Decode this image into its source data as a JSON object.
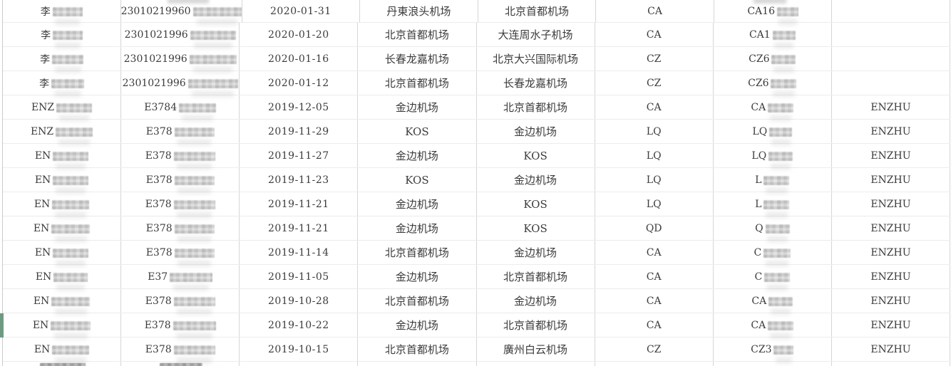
{
  "colors": {
    "row_highlight_green": "#6f9a82",
    "grid_vertical_line": "#d6d6d6",
    "grid_horizontal_line": "#ececec",
    "text": "#3b3b3b"
  },
  "table": {
    "highlighted_row": 14,
    "rows": [
      {
        "name_prefix": "李",
        "name_redacted": true,
        "id_prefix": "23010219960",
        "id_redacted": true,
        "date": "2020-01-31",
        "departure": "丹東浪头机场",
        "arrival": "北京首都机场",
        "carrier": "CA",
        "flight_prefix": "CA16",
        "flight_redacted": true,
        "passenger": ""
      },
      {
        "name_prefix": "李",
        "name_redacted": true,
        "id_prefix": "2301021996",
        "id_redacted": true,
        "date": "2020-01-20",
        "departure": "北京首都机场",
        "arrival": "大连周水子机场",
        "carrier": "CA",
        "flight_prefix": "CA1",
        "flight_redacted": true,
        "passenger": ""
      },
      {
        "name_prefix": "李",
        "name_redacted": true,
        "id_prefix": "2301021996",
        "id_redacted": true,
        "date": "2020-01-16",
        "departure": "长春龙嘉机场",
        "arrival": "北京大兴国际机场",
        "carrier": "CZ",
        "flight_prefix": "CZ6",
        "flight_redacted": true,
        "passenger": ""
      },
      {
        "name_prefix": "李",
        "name_redacted": true,
        "id_prefix": "2301021996",
        "id_redacted": true,
        "date": "2020-01-12",
        "departure": "北京首都机场",
        "arrival": "长春龙嘉机场",
        "carrier": "CZ",
        "flight_prefix": "CZ6",
        "flight_redacted": true,
        "passenger": ""
      },
      {
        "name_prefix": "ENZ",
        "name_redacted": true,
        "id_prefix": "E3784",
        "id_redacted": true,
        "date": "2019-12-05",
        "departure": "金边机场",
        "arrival": "北京首都机场",
        "carrier": "CA",
        "flight_prefix": "CA",
        "flight_redacted": true,
        "passenger": "ENZHU"
      },
      {
        "name_prefix": "ENZ",
        "name_redacted": true,
        "id_prefix": "E378",
        "id_redacted": true,
        "date": "2019-11-29",
        "departure": "KOS",
        "arrival": "金边机场",
        "carrier": "LQ",
        "flight_prefix": "LQ",
        "flight_redacted": true,
        "passenger": "ENZHU"
      },
      {
        "name_prefix": "EN",
        "name_redacted": true,
        "id_prefix": "E378",
        "id_redacted": true,
        "date": "2019-11-27",
        "departure": "金边机场",
        "arrival": "KOS",
        "carrier": "LQ",
        "flight_prefix": "LQ",
        "flight_redacted": true,
        "passenger": "ENZHU"
      },
      {
        "name_prefix": "EN",
        "name_redacted": true,
        "id_prefix": "E378",
        "id_redacted": true,
        "date": "2019-11-23",
        "departure": "KOS",
        "arrival": "金边机场",
        "carrier": "LQ",
        "flight_prefix": "L",
        "flight_redacted": true,
        "passenger": "ENZHU"
      },
      {
        "name_prefix": "EN",
        "name_redacted": true,
        "id_prefix": "E378",
        "id_redacted": true,
        "date": "2019-11-21",
        "departure": "金边机场",
        "arrival": "KOS",
        "carrier": "LQ",
        "flight_prefix": "L",
        "flight_redacted": true,
        "passenger": "ENZHU"
      },
      {
        "name_prefix": "EN",
        "name_redacted": true,
        "id_prefix": "E378",
        "id_redacted": true,
        "date": "2019-11-21",
        "departure": "金边机场",
        "arrival": "KOS",
        "carrier": "QD",
        "flight_prefix": "Q",
        "flight_redacted": true,
        "passenger": "ENZHU"
      },
      {
        "name_prefix": "EN",
        "name_redacted": true,
        "id_prefix": "E378",
        "id_redacted": true,
        "date": "2019-11-14",
        "departure": "北京首都机场",
        "arrival": "金边机场",
        "carrier": "CA",
        "flight_prefix": "C",
        "flight_redacted": true,
        "passenger": "ENZHU"
      },
      {
        "name_prefix": "EN",
        "name_redacted": true,
        "id_prefix": "E37",
        "id_redacted": true,
        "date": "2019-11-05",
        "departure": "金边机场",
        "arrival": "北京首都机场",
        "carrier": "CA",
        "flight_prefix": "C",
        "flight_redacted": true,
        "passenger": "ENZHU"
      },
      {
        "name_prefix": "EN",
        "name_redacted": true,
        "id_prefix": "E378",
        "id_redacted": true,
        "date": "2019-10-28",
        "departure": "北京首都机场",
        "arrival": "金边机场",
        "carrier": "CA",
        "flight_prefix": "CA",
        "flight_redacted": true,
        "passenger": "ENZHU"
      },
      {
        "name_prefix": "EN",
        "name_redacted": true,
        "id_prefix": "E378",
        "id_redacted": true,
        "date": "2019-10-22",
        "departure": "金边机场",
        "arrival": "北京首都机场",
        "carrier": "CA",
        "flight_prefix": "CA",
        "flight_redacted": true,
        "passenger": "ENZHU"
      },
      {
        "name_prefix": "EN",
        "name_redacted": true,
        "id_prefix": "E378",
        "id_redacted": true,
        "date": "2019-10-15",
        "departure": "北京首都机场",
        "arrival": "廣州白云机场",
        "carrier": "CZ",
        "flight_prefix": "CZ3",
        "flight_redacted": true,
        "passenger": "ENZHU"
      }
    ],
    "partial_bottom_row": {
      "name_redacted": true,
      "id_redacted": true
    },
    "partial_top_row_ghosts": {
      "id_column": true,
      "flight_column": true
    }
  }
}
